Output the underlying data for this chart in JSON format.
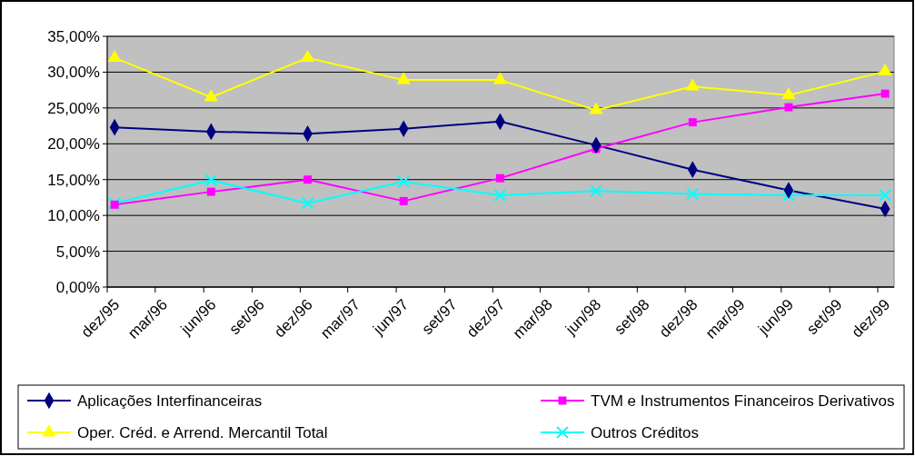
{
  "chart_data": {
    "type": "line",
    "x": [
      "1995-12-15",
      "1996-06-15",
      "1996-12-15",
      "1997-06-15",
      "1997-12-15",
      "1998-06-15",
      "1998-12-15",
      "1999-06-15",
      "1999-12-15"
    ],
    "series": [
      {
        "name": "Aplicações Interfinanceiras",
        "color": "#000080",
        "marker": "diamond",
        "values": [
          22.3,
          21.7,
          21.4,
          22.1,
          23.1,
          19.8,
          16.4,
          13.5,
          10.9
        ]
      },
      {
        "name": "TVM e Instrumentos Financeiros Derivativos",
        "color": "#ff00ff",
        "marker": "square",
        "values": [
          11.5,
          13.3,
          15.0,
          12.0,
          15.2,
          19.3,
          23.0,
          25.1,
          27.0
        ]
      },
      {
        "name": "Oper. Créd. e Arrend. Mercantil Total",
        "color": "#ffff00",
        "marker": "triangle",
        "values": [
          32.0,
          26.5,
          32.0,
          28.9,
          28.9,
          24.7,
          28.0,
          26.8,
          30.1
        ]
      },
      {
        "name": "Outros Créditos",
        "color": "#00ffff",
        "marker": "cross",
        "values": [
          11.7,
          14.9,
          11.7,
          14.7,
          12.8,
          13.4,
          13.0,
          12.8,
          12.8
        ]
      }
    ],
    "xlim": [
      "1995-12-01",
      "2000-01-01"
    ],
    "xticks": [
      {
        "value": "1995-12-01",
        "label": "dez/95"
      },
      {
        "value": "1996-03-01",
        "label": "mar/96"
      },
      {
        "value": "1996-06-01",
        "label": "jun/96"
      },
      {
        "value": "1996-09-01",
        "label": "set/96"
      },
      {
        "value": "1996-12-01",
        "label": "dez/96"
      },
      {
        "value": "1997-03-01",
        "label": "mar/97"
      },
      {
        "value": "1997-06-01",
        "label": "jun/97"
      },
      {
        "value": "1997-09-01",
        "label": "set/97"
      },
      {
        "value": "1997-12-01",
        "label": "dez/97"
      },
      {
        "value": "1998-03-01",
        "label": "mar/98"
      },
      {
        "value": "1998-06-01",
        "label": "jun/98"
      },
      {
        "value": "1998-09-01",
        "label": "set/98"
      },
      {
        "value": "1998-12-01",
        "label": "dez/98"
      },
      {
        "value": "1999-03-01",
        "label": "mar/99"
      },
      {
        "value": "1999-06-01",
        "label": "jun/99"
      },
      {
        "value": "1999-09-01",
        "label": "set/99"
      },
      {
        "value": "1999-12-01",
        "label": "dez/99"
      }
    ],
    "ylim": [
      0,
      35
    ],
    "yticks": [
      {
        "value": 0,
        "label": "0,00%"
      },
      {
        "value": 5,
        "label": "5,00%"
      },
      {
        "value": 10,
        "label": "10,00%"
      },
      {
        "value": 15,
        "label": "15,00%"
      },
      {
        "value": 20,
        "label": "20,00%"
      },
      {
        "value": 25,
        "label": "25,00%"
      },
      {
        "value": 30,
        "label": "30,00%"
      },
      {
        "value": 35,
        "label": "35,00%"
      }
    ],
    "grid": "y",
    "legend": "bottom",
    "line_style": "solid"
  }
}
